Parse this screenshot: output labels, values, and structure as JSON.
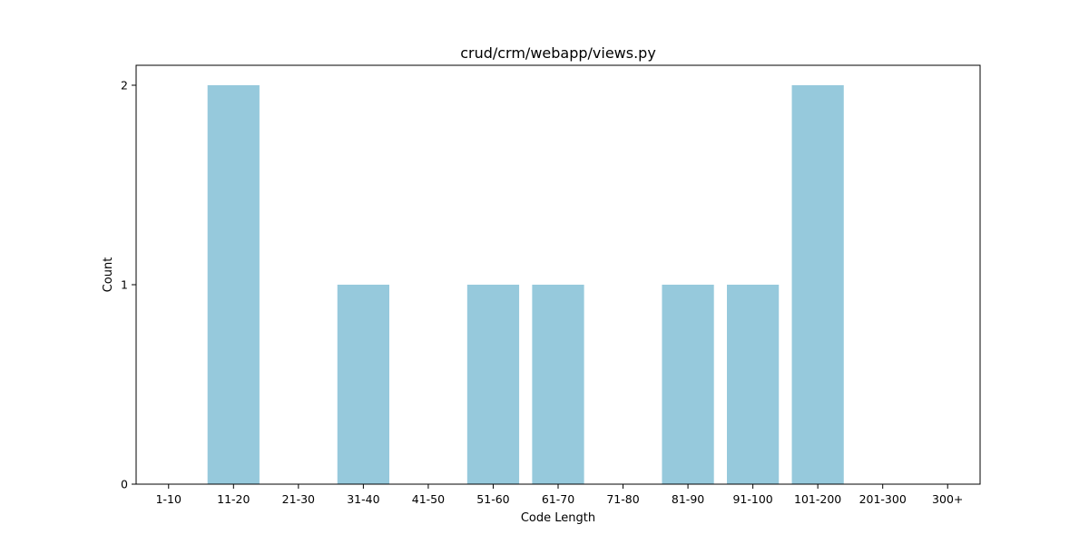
{
  "chart_data": {
    "type": "bar",
    "title": "crud/crm/webapp/views.py",
    "xlabel": "Code Length",
    "ylabel": "Count",
    "categories": [
      "1-10",
      "11-20",
      "21-30",
      "31-40",
      "41-50",
      "51-60",
      "61-70",
      "71-80",
      "81-90",
      "91-100",
      "101-200",
      "201-300",
      "300+"
    ],
    "values": [
      0,
      2,
      0,
      1,
      0,
      1,
      1,
      0,
      1,
      1,
      2,
      0,
      0
    ],
    "ylim": [
      0,
      2.1
    ],
    "yticks": [
      0,
      1,
      2
    ],
    "grid": false,
    "bar_color": "#96c9dc"
  }
}
